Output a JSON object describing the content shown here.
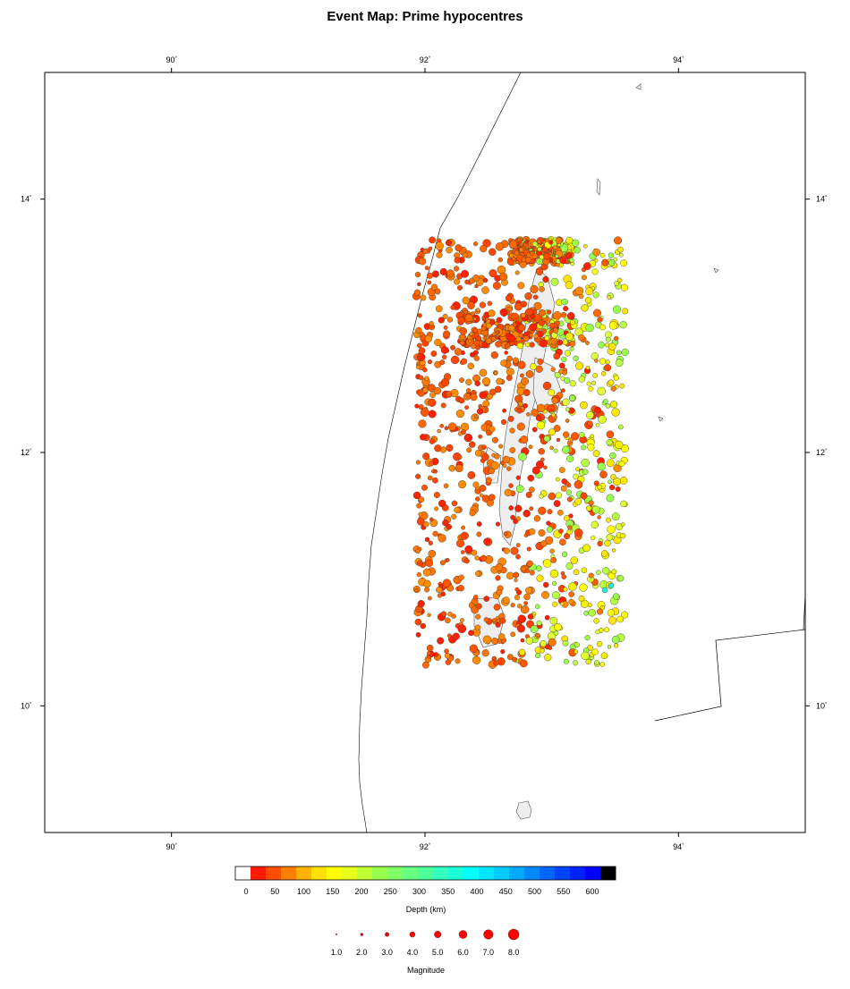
{
  "title": "Event Map: Prime hypocentres",
  "map": {
    "lon_range": [
      89,
      95
    ],
    "lat_range": [
      9,
      15
    ],
    "lon_ticks": [
      {
        "value": 90,
        "label": "90"
      },
      {
        "value": 92,
        "label": "92"
      },
      {
        "value": 94,
        "label": "94"
      }
    ],
    "lat_ticks": [
      {
        "value": 10,
        "label": "10"
      },
      {
        "value": 12,
        "label": "12"
      },
      {
        "value": 14,
        "label": "14"
      }
    ],
    "degree_symbol": "°",
    "land_color": "#eeeeee",
    "event_region": {
      "lon": [
        91.93,
        93.58
      ],
      "lat": [
        10.32,
        13.68
      ]
    }
  },
  "depth_legend": {
    "title": "Depth (km)",
    "ticks": [
      "0",
      "50",
      "100",
      "150",
      "200",
      "250",
      "300",
      "350",
      "400",
      "450",
      "500",
      "550",
      "600"
    ],
    "colors": [
      "#ffffff",
      "#ff1a00",
      "#ff4d00",
      "#ff8000",
      "#ffb300",
      "#ffe000",
      "#ffff00",
      "#e6ff1a",
      "#bfff33",
      "#99ff4d",
      "#80ff66",
      "#66ff80",
      "#4dff99",
      "#33ffbf",
      "#1affd9",
      "#00ffff",
      "#00e6ff",
      "#00ccff",
      "#00aaff",
      "#0088ff",
      "#0066ff",
      "#0044ff",
      "#0022ff",
      "#0000ff",
      "#000000"
    ]
  },
  "magnitude_legend": {
    "title": "Magnitude",
    "labels": [
      "1.0",
      "2.0",
      "3.0",
      "4.0",
      "5.0",
      "6.0",
      "7.0",
      "8.0"
    ],
    "symbol_color": "#ff0000"
  }
}
